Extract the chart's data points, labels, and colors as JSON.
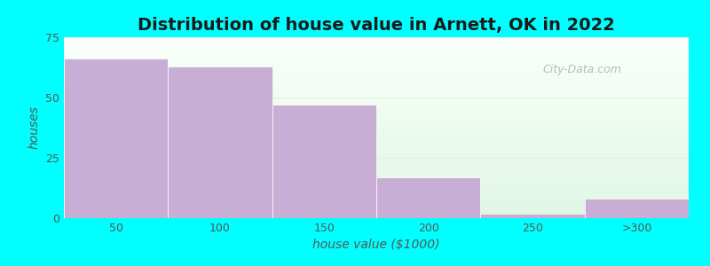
{
  "title": "Distribution of house value in Arnett, OK in 2022",
  "xlabel": "house value ($1000)",
  "ylabel": "houses",
  "categories": [
    "50",
    "100",
    "150",
    "200",
    "250",
    ">300"
  ],
  "values": [
    66,
    63,
    47,
    17,
    2,
    8
  ],
  "bar_color": "#c8aed4",
  "bar_edge_color": "#c8aed4",
  "background_color": "#00ffff",
  "plot_bg_top": "#f5fff5",
  "plot_bg_bottom": "#eefbee",
  "ylim": [
    0,
    75
  ],
  "yticks": [
    0,
    25,
    50,
    75
  ],
  "title_fontsize": 14,
  "axis_label_fontsize": 10,
  "tick_fontsize": 9,
  "watermark_text": "City-Data.com"
}
